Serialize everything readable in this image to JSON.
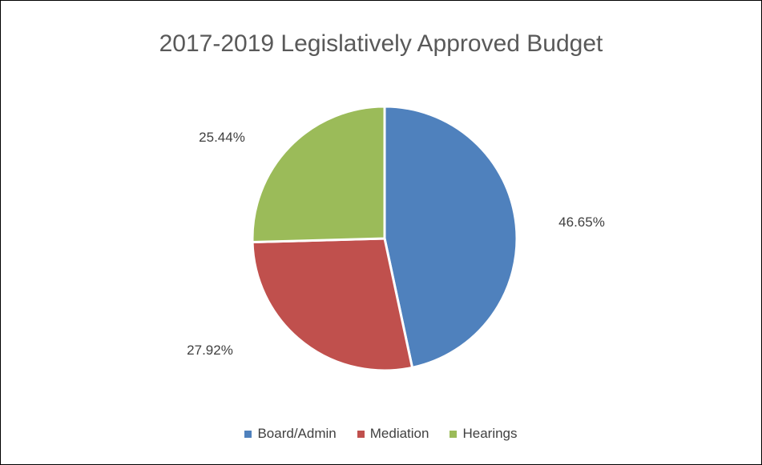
{
  "chart_data": {
    "type": "pie",
    "title": "2017-2019 Legislatively Approved Budget",
    "categories": [
      "Board/Admin",
      "Mediation",
      "Hearings"
    ],
    "values": [
      46.65,
      27.92,
      25.44
    ],
    "value_labels": [
      "46.65%",
      "27.92%",
      "25.44%"
    ],
    "colors": [
      "#4F81BD",
      "#C0504D",
      "#9BBB59"
    ],
    "legend_position": "bottom",
    "start_angle": "12 o'clock",
    "direction": "clockwise"
  }
}
